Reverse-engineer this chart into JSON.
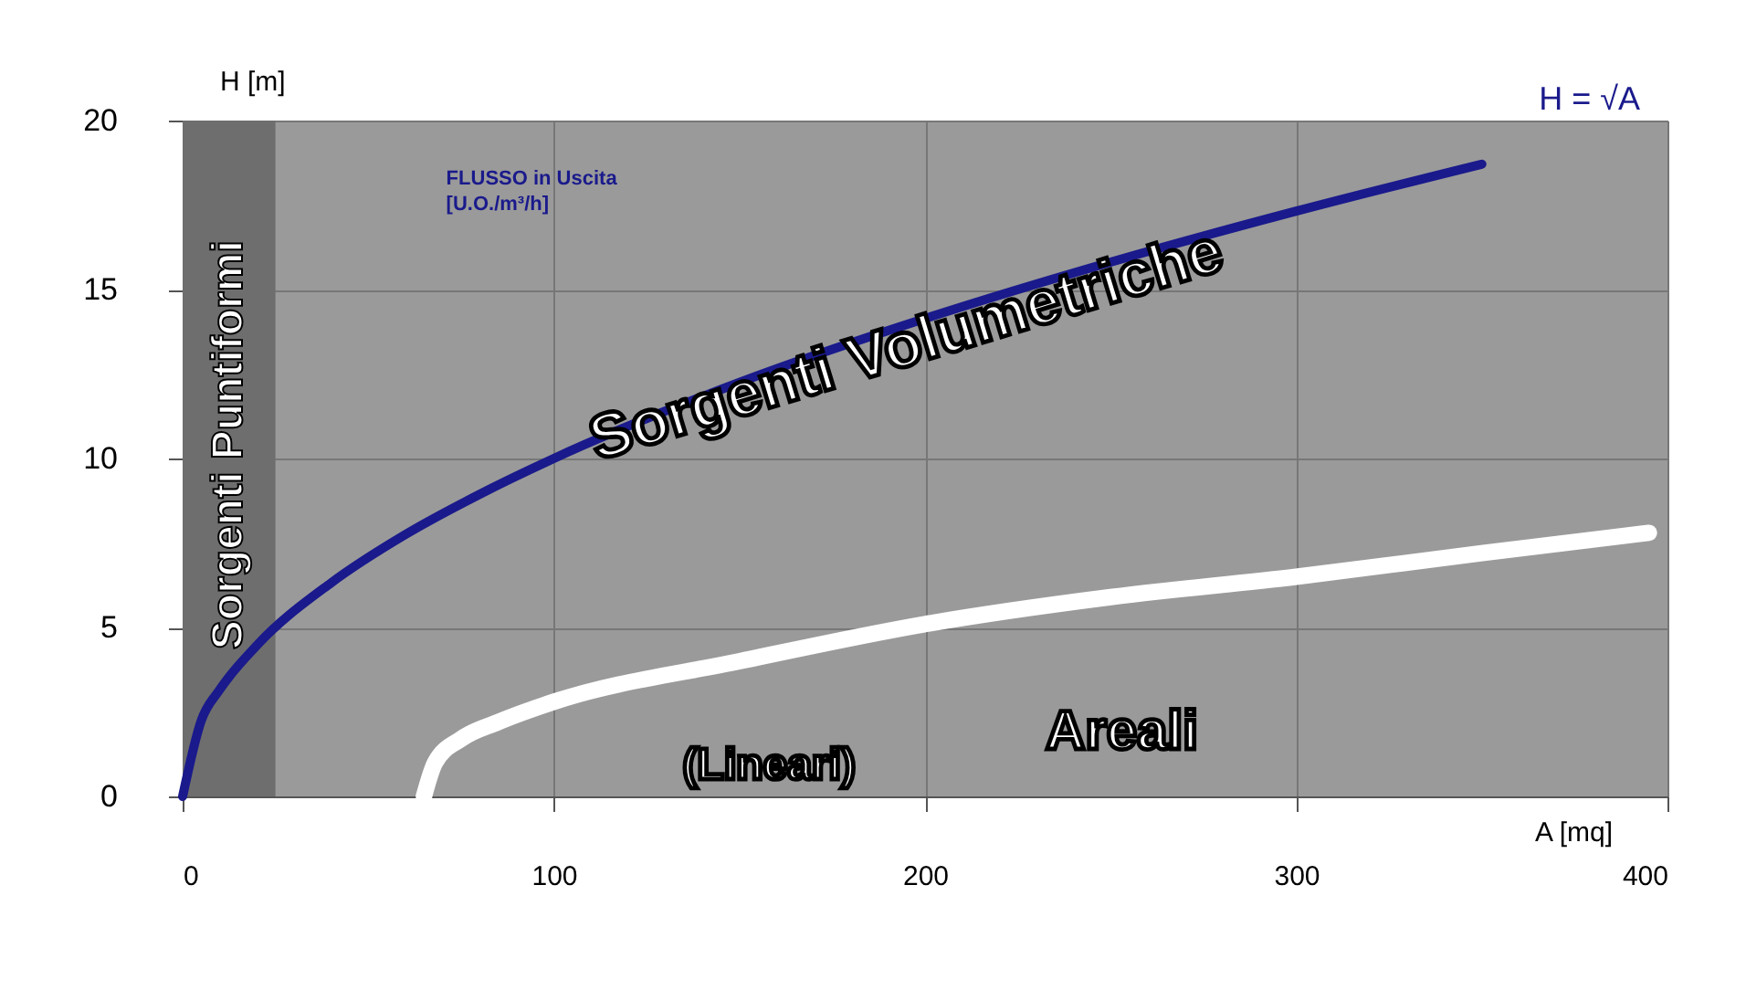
{
  "chart_data": {
    "type": "line",
    "xlabel": "A [mq]",
    "ylabel": "H [m]",
    "x": [
      0,
      5,
      10,
      20,
      40,
      60,
      80,
      100,
      150,
      200,
      250,
      300,
      350
    ],
    "series": [
      {
        "name": "H = √A",
        "color": "#1a1a8c",
        "values": [
          0,
          2.24,
          3.16,
          4.47,
          6.32,
          7.75,
          8.94,
          10,
          12.25,
          14.14,
          15.81,
          17.32,
          18.71
        ]
      },
      {
        "color": "#ffffff",
        "x": [
          65,
          68,
          75,
          85,
          100,
          150,
          200,
          250,
          300,
          350,
          395
        ],
        "values": [
          0,
          1.0,
          1.7,
          2.2,
          2.8,
          4.0,
          5.1,
          5.9,
          6.5,
          7.2,
          7.8
        ]
      }
    ],
    "xlim": [
      0,
      400
    ],
    "xticks": [
      0,
      100,
      200,
      300,
      400
    ],
    "ylim": [
      0,
      20
    ],
    "yticks": [
      0,
      5,
      10,
      15,
      20
    ],
    "grid": true,
    "marker": "none",
    "line_style": "solid",
    "bands": [
      {
        "axis": "x",
        "from": 0,
        "to": 25,
        "label": "Sorgenti Puntiformi",
        "color": "#6e6e6e"
      }
    ],
    "annotations": [
      "Sorgenti Volumetriche",
      "Areali",
      "(Lineari)",
      "FLUSSO in Uscita\n[U.O./m³/h]"
    ]
  }
}
